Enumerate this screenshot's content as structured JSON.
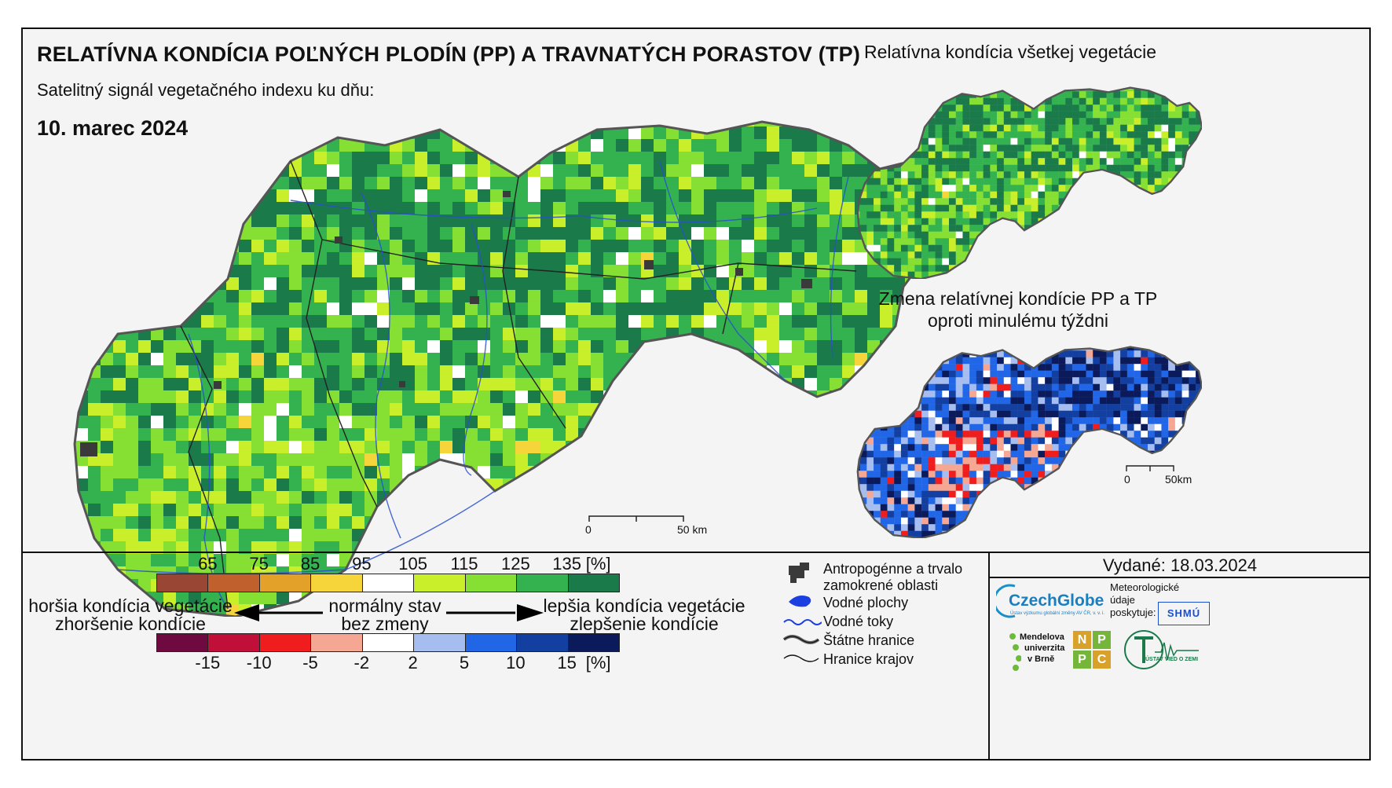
{
  "header": {
    "title": "RELATÍVNA KONDÍCIA POĽNÝCH PLODÍN (PP) A TRAVNATÝCH PORASTOV (TP)",
    "subtitle": "Satelitný signál vegetačného indexu ku dňu:",
    "date": "10. marec 2024"
  },
  "insets": {
    "vegetation_title": "Relatívna kondícia všetkej vegetácie",
    "change_title_line1": "Zmena relatívnej kondície PP a TP",
    "change_title_line2": "oproti minulému týždni"
  },
  "scalebar_main": {
    "zero": "0",
    "end": "50 km"
  },
  "scalebar_inset": {
    "zero": "0",
    "end": "50km"
  },
  "legend": {
    "condition_ticks": [
      "65",
      "75",
      "85",
      "95",
      "105",
      "115",
      "125",
      "135",
      "[%]"
    ],
    "condition_colors": [
      "#9a4634",
      "#c0602c",
      "#e3a12a",
      "#f5d53a",
      "#ffffff",
      "#c8ef2a",
      "#86e033",
      "#33b24f",
      "#1a7a4a"
    ],
    "change_ticks": [
      "-15",
      "-10",
      "-5",
      "-2",
      "2",
      "5",
      "10",
      "15",
      "[%]"
    ],
    "change_colors": [
      "#6e0a40",
      "#c0103a",
      "#ef1d1d",
      "#f5a793",
      "#ffffff",
      "#a6bdf0",
      "#2066e6",
      "#123fa0",
      "#0b1a5a"
    ],
    "worse_line1": "horšia kondícia vegetácie",
    "worse_line2": "zhoršenie kondície",
    "normal_line1": "normálny stav",
    "normal_line2": "bez zmeny",
    "better_line1": "lepšia kondícia vegetácie",
    "better_line2": "zlepšenie kondície"
  },
  "symbols": [
    {
      "icon": "anthropogenic-area-icon",
      "label_line1": "Antropogénne a trvalo",
      "label_line2": "zamokrené oblasti"
    },
    {
      "icon": "water-body-icon",
      "label_line1": "Vodné plochy",
      "label_line2": ""
    },
    {
      "icon": "river-icon",
      "label_line1": "Vodné toky",
      "label_line2": ""
    },
    {
      "icon": "state-border-icon",
      "label_line1": "Štátne hranice",
      "label_line2": ""
    },
    {
      "icon": "region-border-icon",
      "label_line1": "Hranice krajov",
      "label_line2": ""
    }
  ],
  "issued": "Vydané: 18.03.2024",
  "credits": {
    "czechglobe": "CzechGlobe",
    "czechglobe_sub": "Ústav výzkumu globální změny AV ČR, v. v. i.",
    "shmu_label_line1": "Meteorologické",
    "shmu_label_line2": "údaje",
    "shmu_label_line3": "poskytuje:",
    "shmu": "SHMÚ",
    "mendel_line1": "Mendelova",
    "mendel_line2": "univerzita",
    "mendel_line3": "v Brně",
    "nppc": [
      "N",
      "P",
      "P",
      "C"
    ],
    "uvz": "ÚSTAV VIED O ZEMI"
  },
  "map_colors": {
    "main_palette": [
      "#1a7a4a",
      "#33b24f",
      "#86e033",
      "#c8ef2a",
      "#ffffff",
      "#f5d53a"
    ],
    "change_palette": [
      "#0b1a5a",
      "#123fa0",
      "#2066e6",
      "#a6bdf0",
      "#ffffff",
      "#f5a793",
      "#ef1d1d"
    ],
    "border": "#555555",
    "river": "#2a4fd0"
  }
}
